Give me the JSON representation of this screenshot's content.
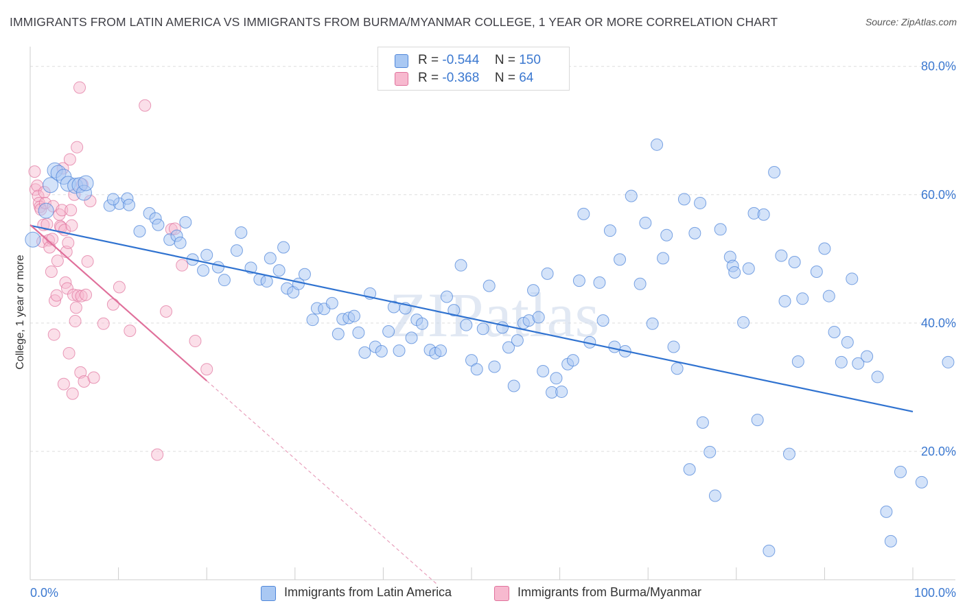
{
  "title": "IMMIGRANTS FROM LATIN AMERICA VS IMMIGRANTS FROM BURMA/MYANMAR COLLEGE, 1 YEAR OR MORE CORRELATION CHART",
  "source": "Source: ZipAtlas.com",
  "watermark": "ZIPatlas",
  "legend": {
    "row1": {
      "r_label": "R =",
      "r_value": "-0.544",
      "n_label": "N =",
      "n_value": "150"
    },
    "row2": {
      "r_label": "R =",
      "r_value": "-0.368",
      "n_label": "N =",
      "n_value": "64"
    }
  },
  "colors": {
    "blue": "#4f86d9",
    "blue_fill": "#a9c8f3",
    "pink": "#e0709b",
    "pink_fill": "#f7b9cf",
    "axis_text": "#3b78d0"
  },
  "chart_data": {
    "type": "scatter",
    "title": "IMMIGRANTS FROM LATIN AMERICA VS IMMIGRANTS FROM BURMA/MYANMAR COLLEGE, 1 YEAR OR MORE CORRELATION CHART",
    "xlabel": "",
    "ylabel": "College, 1 year or more",
    "xlim": [
      0,
      100
    ],
    "ylim": [
      0,
      82
    ],
    "x_tick_labels": [
      "0.0%",
      "100.0%"
    ],
    "y_ticks": [
      20,
      40,
      60,
      80
    ],
    "y_tick_labels": [
      "20.0%",
      "40.0%",
      "60.0%",
      "80.0%"
    ],
    "grid": true,
    "series": [
      {
        "name": "Immigrants from Latin America",
        "color": "#4f86d9",
        "r": -0.544,
        "n": 150,
        "trend": {
          "x": [
            0,
            100
          ],
          "y": [
            55.2,
            26.2
          ],
          "dashed_x": null
        },
        "points": [
          [
            0.3,
            53.0
          ],
          [
            1.8,
            57.5
          ],
          [
            2.3,
            61.5
          ],
          [
            2.8,
            63.8
          ],
          [
            3.2,
            63.4
          ],
          [
            3.8,
            62.8
          ],
          [
            4.3,
            61.7
          ],
          [
            5.1,
            61.4
          ],
          [
            5.6,
            61.5
          ],
          [
            6.1,
            60.3
          ],
          [
            6.3,
            61.8
          ],
          [
            9.0,
            58.3
          ],
          [
            10.1,
            58.6
          ],
          [
            11.0,
            59.4
          ],
          [
            11.2,
            58.4
          ],
          [
            9.4,
            59.3
          ],
          [
            12.4,
            54.3
          ],
          [
            13.5,
            57.1
          ],
          [
            14.2,
            56.3
          ],
          [
            14.5,
            55.3
          ],
          [
            15.8,
            53.0
          ],
          [
            17.6,
            55.7
          ],
          [
            16.6,
            53.6
          ],
          [
            17.0,
            52.5
          ],
          [
            18.4,
            49.9
          ],
          [
            19.6,
            48.2
          ],
          [
            20.0,
            50.6
          ],
          [
            21.3,
            48.7
          ],
          [
            22.0,
            46.7
          ],
          [
            23.9,
            54.1
          ],
          [
            23.4,
            51.3
          ],
          [
            25.0,
            48.6
          ],
          [
            26.0,
            46.8
          ],
          [
            26.8,
            46.5
          ],
          [
            27.2,
            50.1
          ],
          [
            28.2,
            48.2
          ],
          [
            28.7,
            51.8
          ],
          [
            29.1,
            45.4
          ],
          [
            29.8,
            44.8
          ],
          [
            30.4,
            46.1
          ],
          [
            31.1,
            47.6
          ],
          [
            32.0,
            40.5
          ],
          [
            32.5,
            42.3
          ],
          [
            33.3,
            42.2
          ],
          [
            34.2,
            43.1
          ],
          [
            34.9,
            38.3
          ],
          [
            35.4,
            40.6
          ],
          [
            36.1,
            40.8
          ],
          [
            36.7,
            41.1
          ],
          [
            37.2,
            38.5
          ],
          [
            37.9,
            35.4
          ],
          [
            38.5,
            44.6
          ],
          [
            39.1,
            36.3
          ],
          [
            39.8,
            35.6
          ],
          [
            40.6,
            38.7
          ],
          [
            41.2,
            42.5
          ],
          [
            41.8,
            35.7
          ],
          [
            42.5,
            42.3
          ],
          [
            43.2,
            37.7
          ],
          [
            43.8,
            40.5
          ],
          [
            44.4,
            39.9
          ],
          [
            45.3,
            35.8
          ],
          [
            45.9,
            35.3
          ],
          [
            46.5,
            35.7
          ],
          [
            47.2,
            44.1
          ],
          [
            48.0,
            42.0
          ],
          [
            48.8,
            49.0
          ],
          [
            49.4,
            39.7
          ],
          [
            50.0,
            34.2
          ],
          [
            50.6,
            32.8
          ],
          [
            51.3,
            39.1
          ],
          [
            52.0,
            45.8
          ],
          [
            52.6,
            33.2
          ],
          [
            53.5,
            39.3
          ],
          [
            54.2,
            36.2
          ],
          [
            54.8,
            30.2
          ],
          [
            55.2,
            37.3
          ],
          [
            55.9,
            40.0
          ],
          [
            56.5,
            40.4
          ],
          [
            57.0,
            45.1
          ],
          [
            57.6,
            40.9
          ],
          [
            58.1,
            32.5
          ],
          [
            58.6,
            47.7
          ],
          [
            59.1,
            29.2
          ],
          [
            59.6,
            31.4
          ],
          [
            60.2,
            29.3
          ],
          [
            60.9,
            33.6
          ],
          [
            61.5,
            34.2
          ],
          [
            62.2,
            46.6
          ],
          [
            62.7,
            57.0
          ],
          [
            63.4,
            37.0
          ],
          [
            64.5,
            46.3
          ],
          [
            64.9,
            40.4
          ],
          [
            65.7,
            54.4
          ],
          [
            66.2,
            36.3
          ],
          [
            66.8,
            49.9
          ],
          [
            67.4,
            35.6
          ],
          [
            68.1,
            59.8
          ],
          [
            69.1,
            46.1
          ],
          [
            69.7,
            55.6
          ],
          [
            70.5,
            39.9
          ],
          [
            71.0,
            67.8
          ],
          [
            71.7,
            50.1
          ],
          [
            72.1,
            53.7
          ],
          [
            72.9,
            36.3
          ],
          [
            73.3,
            32.9
          ],
          [
            74.1,
            59.3
          ],
          [
            74.7,
            17.2
          ],
          [
            75.3,
            54.0
          ],
          [
            75.9,
            58.7
          ],
          [
            76.2,
            24.5
          ],
          [
            77.0,
            19.9
          ],
          [
            78.2,
            54.6
          ],
          [
            77.6,
            13.1
          ],
          [
            79.3,
            50.3
          ],
          [
            79.6,
            48.9
          ],
          [
            79.8,
            47.9
          ],
          [
            80.8,
            40.1
          ],
          [
            81.4,
            48.5
          ],
          [
            82.0,
            57.1
          ],
          [
            82.4,
            24.9
          ],
          [
            83.1,
            56.9
          ],
          [
            83.7,
            4.5
          ],
          [
            84.3,
            63.5
          ],
          [
            85.1,
            50.5
          ],
          [
            85.5,
            43.4
          ],
          [
            86.0,
            19.6
          ],
          [
            86.6,
            49.5
          ],
          [
            87.0,
            34.0
          ],
          [
            87.5,
            43.8
          ],
          [
            89.1,
            48.0
          ],
          [
            90.0,
            51.6
          ],
          [
            90.5,
            44.2
          ],
          [
            91.1,
            38.6
          ],
          [
            91.9,
            33.9
          ],
          [
            92.6,
            37.0
          ],
          [
            93.1,
            46.9
          ],
          [
            93.8,
            33.7
          ],
          [
            94.8,
            34.8
          ],
          [
            96.0,
            31.6
          ],
          [
            97.0,
            10.6
          ],
          [
            97.5,
            6.0
          ],
          [
            98.6,
            16.8
          ],
          [
            101.0,
            15.2
          ],
          [
            104.0,
            33.9
          ]
        ]
      },
      {
        "name": "Immigrants from Burma/Myanmar",
        "color": "#e0709b",
        "r": -0.368,
        "n": 64,
        "trend": {
          "x": [
            0,
            20
          ],
          "y": [
            55.3,
            31.0
          ],
          "dashed_x": [
            20,
            46
          ]
        },
        "points": [
          [
            0.5,
            63.6
          ],
          [
            0.6,
            60.8
          ],
          [
            0.8,
            61.4
          ],
          [
            0.9,
            59.8
          ],
          [
            1.0,
            58.7
          ],
          [
            1.1,
            58.1
          ],
          [
            1.2,
            57.7
          ],
          [
            1.4,
            52.7
          ],
          [
            1.5,
            55.3
          ],
          [
            1.6,
            60.4
          ],
          [
            1.7,
            58.7
          ],
          [
            1.9,
            55.4
          ],
          [
            2.1,
            52.9
          ],
          [
            2.2,
            51.8
          ],
          [
            2.4,
            48.0
          ],
          [
            2.5,
            53.1
          ],
          [
            2.6,
            58.2
          ],
          [
            2.7,
            38.2
          ],
          [
            2.8,
            43.5
          ],
          [
            3.0,
            44.3
          ],
          [
            3.1,
            49.7
          ],
          [
            3.3,
            56.9
          ],
          [
            3.4,
            55.1
          ],
          [
            3.5,
            54.9
          ],
          [
            3.6,
            57.6
          ],
          [
            3.7,
            64.1
          ],
          [
            3.8,
            30.5
          ],
          [
            3.9,
            54.5
          ],
          [
            4.0,
            46.3
          ],
          [
            4.1,
            51.1
          ],
          [
            4.2,
            45.4
          ],
          [
            4.3,
            52.5
          ],
          [
            4.4,
            35.3
          ],
          [
            4.5,
            65.5
          ],
          [
            4.6,
            57.6
          ],
          [
            4.7,
            55.2
          ],
          [
            4.8,
            29.0
          ],
          [
            4.9,
            44.4
          ],
          [
            5.0,
            60.0
          ],
          [
            5.1,
            40.3
          ],
          [
            5.2,
            42.4
          ],
          [
            5.3,
            67.4
          ],
          [
            5.4,
            44.3
          ],
          [
            5.6,
            76.7
          ],
          [
            5.7,
            32.3
          ],
          [
            5.8,
            44.2
          ],
          [
            5.9,
            61.6
          ],
          [
            6.1,
            30.9
          ],
          [
            6.3,
            44.4
          ],
          [
            6.5,
            49.6
          ],
          [
            6.8,
            59.0
          ],
          [
            7.2,
            31.5
          ],
          [
            8.3,
            39.9
          ],
          [
            9.4,
            42.9
          ],
          [
            10.1,
            45.6
          ],
          [
            11.3,
            38.8
          ],
          [
            13.0,
            73.9
          ],
          [
            14.4,
            19.5
          ],
          [
            15.4,
            41.8
          ],
          [
            16.0,
            54.6
          ],
          [
            16.4,
            54.7
          ],
          [
            17.2,
            49.0
          ],
          [
            18.7,
            37.2
          ],
          [
            20.0,
            32.8
          ]
        ]
      }
    ]
  },
  "bottom_legend": {
    "item1": "Immigrants from Latin America",
    "item2": "Immigrants from Burma/Myanmar"
  }
}
